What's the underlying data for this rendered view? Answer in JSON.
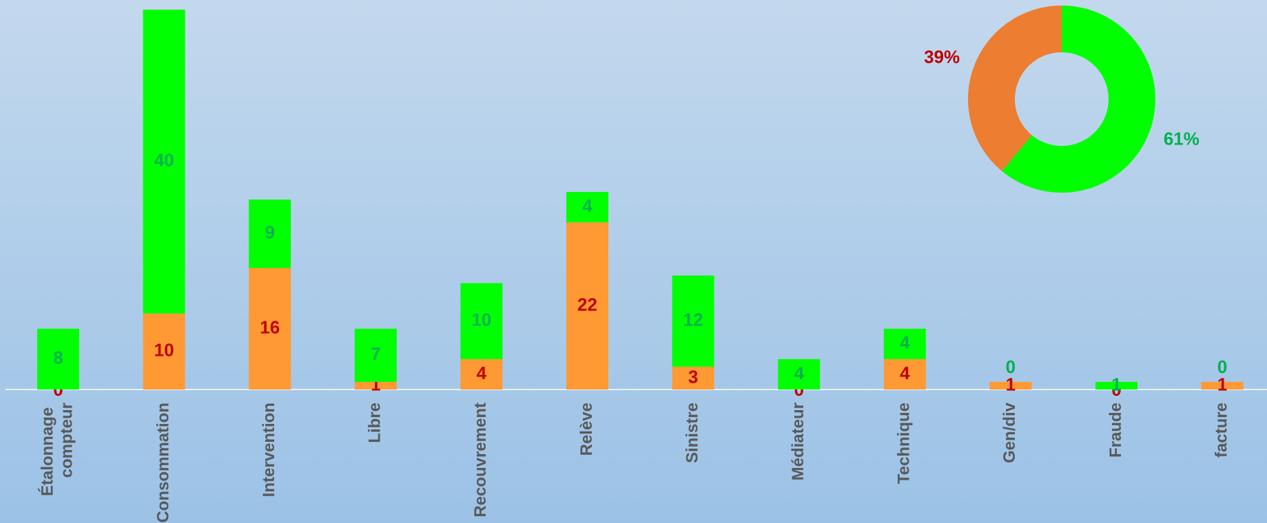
{
  "chart_data": [
    {
      "type": "stacked-bar",
      "categories": [
        "Étalonnage compteur",
        "Consommation",
        "Intervention",
        "Libre",
        "Recouvrement",
        "Relève",
        "Sinistre",
        "Médiateur",
        "Technique",
        "Gen/div",
        "Fraude",
        "facture"
      ],
      "series": [
        {
          "color": "#ff9933",
          "label_color": "#c00000",
          "values": [
            0,
            10,
            16,
            1,
            4,
            22,
            3,
            0,
            4,
            1,
            0,
            1
          ]
        },
        {
          "color": "#00ff00",
          "label_color": "#00b050",
          "values": [
            8,
            40,
            9,
            7,
            10,
            4,
            12,
            4,
            4,
            0,
            1,
            0
          ]
        }
      ]
    },
    {
      "type": "donut",
      "values": [
        61,
        39
      ],
      "value_labels": [
        "61%",
        "39%"
      ],
      "colors": [
        "#00ff00",
        "#ed7d31"
      ],
      "label_colors": [
        "#00b050",
        "#c00000"
      ]
    }
  ]
}
